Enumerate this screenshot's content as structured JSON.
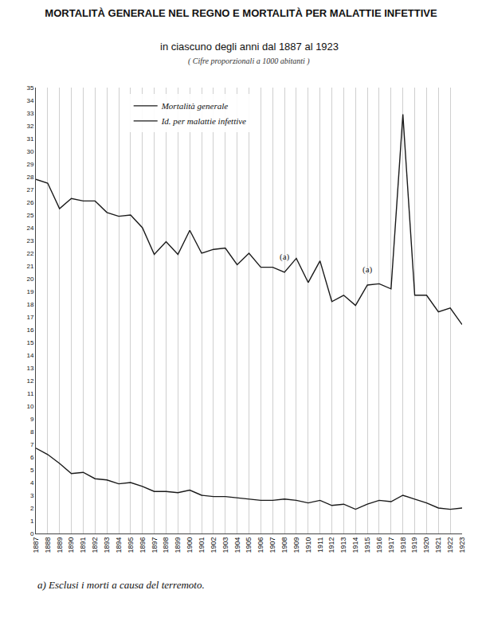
{
  "chart_data": {
    "type": "line",
    "title": "MORTALITÀ GENERALE NEL REGNO E MORTALITÀ PER MALATTIE INFETTIVE",
    "subtitle": "in ciascuno degli anni dal 1887 al 1923",
    "note": "( Cifre proporzionali a 1000 abitanti )",
    "footnote": "a) Esclusi i morti a causa del terremoto.",
    "x": [
      1887,
      1888,
      1889,
      1890,
      1891,
      1892,
      1893,
      1894,
      1895,
      1896,
      1897,
      1898,
      1899,
      1900,
      1901,
      1902,
      1903,
      1904,
      1905,
      1906,
      1907,
      1908,
      1909,
      1910,
      1911,
      1912,
      1913,
      1914,
      1915,
      1916,
      1917,
      1918,
      1919,
      1920,
      1921,
      1922,
      1923
    ],
    "series": [
      {
        "name": "Mortalità generale",
        "color": "#1a1a1a",
        "values": [
          27.8,
          27.5,
          25.5,
          26.3,
          26.1,
          26.1,
          25.2,
          24.9,
          25.0,
          24.0,
          21.9,
          22.9,
          21.9,
          23.8,
          22.0,
          22.3,
          22.4,
          21.1,
          22.0,
          20.9,
          20.9,
          20.5,
          21.6,
          19.7,
          21.4,
          18.2,
          18.7,
          17.9,
          19.5,
          19.6,
          19.2,
          32.9,
          18.7,
          18.7,
          17.4,
          17.7,
          16.4
        ]
      },
      {
        "name": "Id. per malattie infettive",
        "color": "#1a1a1a",
        "values": [
          6.7,
          6.2,
          5.5,
          4.7,
          4.8,
          4.3,
          4.2,
          3.9,
          4.0,
          3.7,
          3.3,
          3.3,
          3.2,
          3.4,
          3.0,
          2.9,
          2.9,
          2.8,
          2.7,
          2.6,
          2.6,
          2.7,
          2.6,
          2.4,
          2.6,
          2.2,
          2.3,
          1.9,
          2.3,
          2.6,
          2.5,
          3.0,
          2.7,
          2.4,
          2.0,
          1.9,
          2.0
        ]
      }
    ],
    "annotations": [
      {
        "x": 1908,
        "y": 21.2,
        "text": "(a)"
      },
      {
        "x": 1915,
        "y": 20.2,
        "text": "(a)"
      }
    ],
    "xlim": [
      1887,
      1923
    ],
    "xticks": [
      1887,
      1888,
      1889,
      1890,
      1891,
      1892,
      1893,
      1894,
      1895,
      1896,
      1897,
      1898,
      1899,
      1900,
      1901,
      1902,
      1903,
      1904,
      1905,
      1906,
      1907,
      1908,
      1909,
      1910,
      1911,
      1912,
      1913,
      1914,
      1915,
      1916,
      1917,
      1918,
      1919,
      1920,
      1921,
      1922,
      1923
    ],
    "ylim": [
      0,
      35
    ],
    "yticks": [
      0,
      1,
      2,
      3,
      4,
      5,
      6,
      7,
      8,
      9,
      10,
      11,
      12,
      13,
      14,
      15,
      16,
      17,
      18,
      19,
      20,
      21,
      22,
      23,
      24,
      25,
      26,
      27,
      28,
      29,
      30,
      31,
      32,
      33,
      34,
      35
    ],
    "grid": "x",
    "legend": "upper left"
  }
}
